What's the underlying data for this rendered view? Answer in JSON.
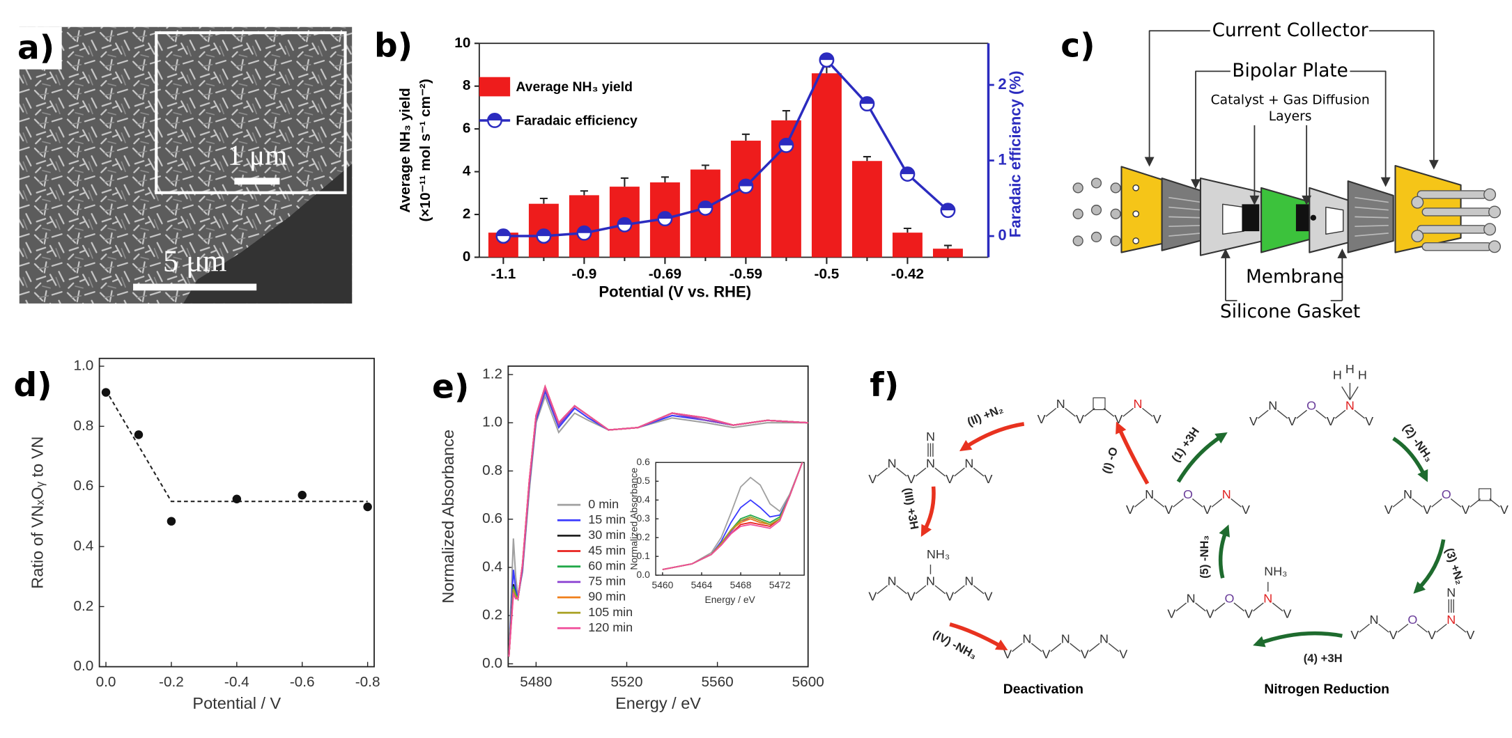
{
  "panel_labels": [
    "a)",
    "b)",
    "c)",
    "d)",
    "e)",
    "f)"
  ],
  "sem_image": {
    "inset_scale_bar": "1 μm",
    "scale_bar": "5 μm"
  },
  "cell_diagram": {
    "current_collector": "Current Collector",
    "bipolar_plate": "Bipolar Plate",
    "catalyst_layers": [
      "Catalyst + Gas Diffusion",
      "Layers"
    ],
    "membrane": "Membrane",
    "silicone_gasket": "Silicone Gasket"
  },
  "chart_data": [
    {
      "type": "bar",
      "categories": [
        -1.1,
        null,
        -0.9,
        null,
        -0.69,
        null,
        -0.59,
        null,
        -0.5,
        null,
        -0.42,
        null
      ],
      "series": [
        {
          "name": "Average NH₃ yield",
          "color": "#ee1c1c",
          "values": [
            1.15,
            2.5,
            2.9,
            3.3,
            3.5,
            4.1,
            5.45,
            6.4,
            8.6,
            4.5,
            1.15,
            0.4
          ],
          "errors": [
            0.1,
            0.25,
            0.2,
            0.4,
            0.25,
            0.2,
            0.3,
            0.45,
            0.3,
            0.2,
            0.2,
            0.15
          ]
        },
        {
          "name": "Faradaic efficiency",
          "color": "#2b2bbf",
          "axis": "y2",
          "values": [
            0,
            0,
            0.04,
            0.15,
            0.23,
            0.37,
            0.66,
            1.2,
            2.33,
            1.75,
            0.82,
            0.34
          ]
        }
      ],
      "ylim": [
        0,
        10
      ],
      "yticks": [
        0,
        2,
        4,
        6,
        8,
        10
      ],
      "y2lim": [
        -0.28,
        2.55
      ],
      "y2ticks": [
        0,
        1,
        2
      ],
      "xlabel": "Potential (V vs. RHE)",
      "ylabel": [
        "Average NH₃ yield",
        "(×10⁻¹¹ mol s⁻¹ cm⁻²)"
      ],
      "y2label": "Faradaic efficiency (%)",
      "legend": "upper left"
    },
    {
      "type": "scatter",
      "x": [
        0,
        -0.1,
        -0.2,
        -0.4,
        -0.6,
        -0.8
      ],
      "values": [
        0.913,
        0.772,
        0.484,
        0.558,
        0.571,
        0.532
      ],
      "color": "#111111",
      "line": {
        "x": [
          0,
          -0.2,
          -0.8
        ],
        "values": [
          0.92,
          0.55,
          0.55
        ],
        "style": "dashed"
      },
      "xlim": [
        0.02,
        -0.82
      ],
      "xticks": [
        {
          "value": 0,
          "label": "0.0"
        },
        -0.2,
        -0.4,
        -0.6,
        -0.8
      ],
      "ylim": [
        0,
        1.026
      ],
      "yticks": [
        {
          "value": 0,
          "label": "0.0"
        },
        0.2,
        0.4,
        0.6,
        0.8,
        {
          "value": 1,
          "label": "1.0"
        }
      ],
      "xlabel": "Potential / V",
      "ylabel": "Ratio of VNₓOᵧ to VN"
    },
    {
      "type": "line",
      "x": [
        5468,
        5470,
        5471,
        5472,
        5474,
        5477,
        5480,
        5484,
        5490,
        5497,
        5503,
        5512,
        5525,
        5540,
        5555,
        5567,
        5582,
        5600
      ],
      "series": [
        {
          "name": "0 min",
          "color": "#a0a0a0",
          "values": [
            0.03,
            0.52,
            0.36,
            0.28,
            0.38,
            0.72,
            1.0,
            1.11,
            0.96,
            1.04,
            1.01,
            0.97,
            0.98,
            1.02,
            1.0,
            0.98,
            1.0,
            1.0
          ]
        },
        {
          "name": "15 min",
          "color": "#3a3aff",
          "values": [
            0.03,
            0.39,
            0.31,
            0.27,
            0.39,
            0.74,
            1.01,
            1.13,
            0.98,
            1.06,
            1.02,
            0.97,
            0.98,
            1.03,
            1.01,
            0.99,
            1.01,
            1.0
          ]
        },
        {
          "name": "30 min",
          "color": "#222222",
          "values": [
            0.03,
            0.33,
            0.29,
            0.27,
            0.4,
            0.75,
            1.02,
            1.14,
            0.99,
            1.07,
            1.03,
            0.97,
            0.98,
            1.04,
            1.01,
            0.99,
            1.01,
            1.0
          ]
        },
        {
          "name": "45 min",
          "color": "#e8231f",
          "values": [
            0.03,
            0.3,
            0.28,
            0.27,
            0.41,
            0.76,
            1.03,
            1.15,
            1.0,
            1.07,
            1.03,
            0.97,
            0.98,
            1.04,
            1.02,
            0.99,
            1.01,
            1.0
          ]
        },
        {
          "name": "60 min",
          "color": "#22a84a",
          "values": [
            0.03,
            0.32,
            0.29,
            0.27,
            0.4,
            0.75,
            1.02,
            1.14,
            0.99,
            1.07,
            1.03,
            0.97,
            0.98,
            1.04,
            1.01,
            0.99,
            1.01,
            1.0
          ]
        },
        {
          "name": "75 min",
          "color": "#8a3fd1",
          "values": [
            0.03,
            0.31,
            0.28,
            0.27,
            0.4,
            0.75,
            1.02,
            1.14,
            0.99,
            1.07,
            1.03,
            0.97,
            0.98,
            1.04,
            1.01,
            0.99,
            1.01,
            1.0
          ]
        },
        {
          "name": "90 min",
          "color": "#f07f1a",
          "values": [
            0.03,
            0.31,
            0.28,
            0.27,
            0.41,
            0.76,
            1.03,
            1.15,
            1.0,
            1.07,
            1.03,
            0.97,
            0.98,
            1.04,
            1.02,
            0.99,
            1.01,
            1.0
          ]
        },
        {
          "name": "105 min",
          "color": "#a8a020",
          "values": [
            0.03,
            0.31,
            0.28,
            0.27,
            0.41,
            0.76,
            1.03,
            1.15,
            1.0,
            1.07,
            1.03,
            0.97,
            0.98,
            1.04,
            1.02,
            0.99,
            1.01,
            1.0
          ]
        },
        {
          "name": "120 min",
          "color": "#f04d9a",
          "values": [
            0.03,
            0.29,
            0.27,
            0.27,
            0.41,
            0.76,
            1.03,
            1.15,
            1.0,
            1.07,
            1.03,
            0.97,
            0.98,
            1.04,
            1.02,
            0.99,
            1.01,
            1.0
          ]
        }
      ],
      "xlim": [
        5467.7,
        5600
      ],
      "xticks": [
        5480,
        5520,
        5560,
        5600
      ],
      "ylim": [
        -0.012,
        1.235
      ],
      "yticks": [
        {
          "value": 0,
          "label": "0.0"
        },
        0.2,
        0.4,
        0.6,
        0.8,
        {
          "value": 1,
          "label": "1.0"
        },
        1.2
      ],
      "xlabel": "Energy / eV",
      "ylabel": "Normalized Absorbance",
      "legend": "center",
      "inset": {
        "type": "line",
        "x": [
          5460,
          5463,
          5465,
          5466,
          5467,
          5468,
          5469,
          5470,
          5471,
          5472,
          5473,
          5474.3
        ],
        "series": [
          {
            "color": "#a0a0a0",
            "values": [
              0.03,
              0.06,
              0.12,
              0.2,
              0.33,
              0.47,
              0.52,
              0.48,
              0.38,
              0.34,
              0.43,
              0.6
            ]
          },
          {
            "color": "#3a3aff",
            "values": [
              0.03,
              0.06,
              0.11,
              0.18,
              0.28,
              0.36,
              0.4,
              0.36,
              0.31,
              0.32,
              0.42,
              0.6
            ]
          },
          {
            "color": "#222222",
            "values": [
              0.03,
              0.06,
              0.11,
              0.17,
              0.24,
              0.29,
              0.31,
              0.29,
              0.27,
              0.3,
              0.42,
              0.6
            ]
          },
          {
            "color": "#e8231f",
            "values": [
              0.03,
              0.06,
              0.11,
              0.16,
              0.22,
              0.27,
              0.28,
              0.27,
              0.26,
              0.3,
              0.42,
              0.6
            ]
          },
          {
            "color": "#22a84a",
            "values": [
              0.03,
              0.06,
              0.11,
              0.17,
              0.24,
              0.3,
              0.32,
              0.3,
              0.28,
              0.31,
              0.42,
              0.6
            ]
          },
          {
            "color": "#8a3fd1",
            "values": [
              0.03,
              0.06,
              0.11,
              0.17,
              0.23,
              0.29,
              0.3,
              0.28,
              0.27,
              0.3,
              0.42,
              0.6
            ]
          },
          {
            "color": "#f07f1a",
            "values": [
              0.03,
              0.06,
              0.11,
              0.17,
              0.24,
              0.28,
              0.3,
              0.28,
              0.27,
              0.3,
              0.42,
              0.6
            ]
          },
          {
            "color": "#a8a020",
            "values": [
              0.03,
              0.06,
              0.11,
              0.17,
              0.24,
              0.29,
              0.31,
              0.29,
              0.27,
              0.3,
              0.42,
              0.6
            ]
          },
          {
            "color": "#f04d9a",
            "values": [
              0.03,
              0.06,
              0.11,
              0.16,
              0.22,
              0.26,
              0.27,
              0.26,
              0.25,
              0.29,
              0.42,
              0.6
            ]
          }
        ],
        "xlim": [
          5459.3,
          5474.5
        ],
        "xticks": [
          5460,
          5464,
          5468,
          5472
        ],
        "ylim": [
          0,
          0.6
        ],
        "yticks": [
          {
            "value": 0,
            "label": "0.0"
          },
          0.1,
          0.2,
          0.3,
          0.4,
          0.5,
          0.6
        ],
        "xlabel": "Energy / eV",
        "ylabel": "Normalized Absorbance"
      }
    }
  ],
  "mechanism": {
    "element_colors": {
      "V": "#333333",
      "N": "#333333",
      "O": "#6a3d9a",
      "H": "#333333",
      "□": "#333333"
    },
    "accent_color": "#e02020",
    "structures": [
      {
        "atoms": [
          "V",
          "N",
          "V",
          "□",
          "V",
          "N",
          "V"
        ],
        "accent_atom": 5
      },
      {
        "atoms": [
          "V",
          "N",
          "V",
          "N",
          "V",
          "N",
          "V"
        ],
        "top_atom": 3,
        "top": [
          "N"
        ],
        "bond": "triple"
      },
      {
        "atoms": [
          "V",
          "N",
          "V",
          "N",
          "V",
          "N",
          "V"
        ],
        "top_atom": 3,
        "top": [
          "NH₃"
        ],
        "bond": "single"
      },
      {
        "atoms": [
          "V",
          "N",
          "V",
          "N",
          "V",
          "N",
          "V"
        ]
      },
      {
        "atoms": [
          "V",
          "N",
          "V",
          "O",
          "V",
          "N",
          "V"
        ],
        "accent_atom": 5
      },
      {
        "atoms": [
          "V",
          "N",
          "V",
          "O",
          "V",
          "N",
          "V"
        ],
        "accent_atom": 5,
        "top_atom": 5,
        "top": [
          "H",
          "H",
          "H"
        ],
        "bond": "single"
      },
      {
        "atoms": [
          "V",
          "N",
          "V",
          "O",
          "V",
          "□",
          "V"
        ]
      },
      {
        "atoms": [
          "V",
          "N",
          "V",
          "O",
          "V",
          "N",
          "V"
        ],
        "accent_atom": 5,
        "top_atom": 5,
        "top": [
          "N"
        ],
        "bond": "triple"
      },
      {
        "atoms": [
          "V",
          "N",
          "V",
          "O",
          "V",
          "N",
          "V"
        ],
        "accent_atom": 5,
        "top_atom": 5,
        "top": [
          "NH₃"
        ],
        "bond": "single"
      }
    ],
    "steps": [
      {
        "label": "(I) -O",
        "color": "#e8321f"
      },
      {
        "label": "(II) +N₂",
        "color": "#e8321f"
      },
      {
        "label": "(III) +3H",
        "color": "#e8321f"
      },
      {
        "label": "(IV) -NH₃",
        "color": "#e8321f"
      },
      {
        "label": "(1) +3H",
        "color": "#1e6b2e"
      },
      {
        "label": "(2) -NH₃",
        "color": "#1e6b2e"
      },
      {
        "label": "(3) +N₂",
        "color": "#1e6b2e"
      },
      {
        "label": "(4) +3H",
        "color": "#1e6b2e"
      },
      {
        "label": "(5) -NH₃",
        "color": "#1e6b2e"
      }
    ],
    "captions": [
      "Deactivation",
      "Nitrogen Reduction"
    ]
  }
}
